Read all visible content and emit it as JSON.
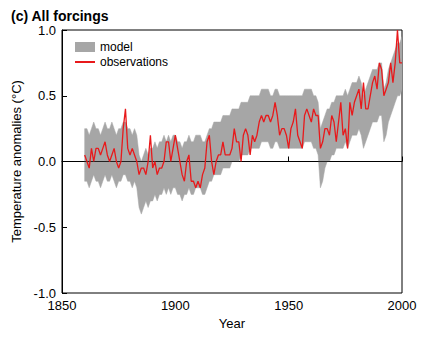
{
  "chart_data": {
    "type": "line",
    "title": "(c) All forcings",
    "x_label": "Year",
    "y_label": "Temperature anomalies (°C)",
    "xlim": [
      1850,
      2000
    ],
    "xticks": [
      1850,
      1900,
      1950,
      2000
    ],
    "ylim": [
      -1,
      1
    ],
    "yticks": [
      {
        "value": -1,
        "label": "-1.0"
      },
      {
        "value": -0.5,
        "label": "-0.5"
      },
      {
        "value": 0,
        "label": "0.0"
      },
      {
        "value": 0.5,
        "label": "0.5"
      },
      {
        "value": 1,
        "label": "1.0"
      }
    ],
    "grid": false,
    "legend": "upper left",
    "x": [
      1860,
      1861,
      1862,
      1863,
      1864,
      1865,
      1866,
      1867,
      1868,
      1869,
      1870,
      1871,
      1872,
      1873,
      1874,
      1875,
      1876,
      1877,
      1878,
      1879,
      1880,
      1881,
      1882,
      1883,
      1884,
      1885,
      1886,
      1887,
      1888,
      1889,
      1890,
      1891,
      1892,
      1893,
      1894,
      1895,
      1896,
      1897,
      1898,
      1899,
      1900,
      1901,
      1902,
      1903,
      1904,
      1905,
      1906,
      1907,
      1908,
      1909,
      1910,
      1911,
      1912,
      1913,
      1914,
      1915,
      1916,
      1917,
      1918,
      1919,
      1920,
      1921,
      1922,
      1923,
      1924,
      1925,
      1926,
      1927,
      1928,
      1929,
      1930,
      1931,
      1932,
      1933,
      1934,
      1935,
      1936,
      1937,
      1938,
      1939,
      1940,
      1941,
      1942,
      1943,
      1944,
      1945,
      1946,
      1947,
      1948,
      1949,
      1950,
      1951,
      1952,
      1953,
      1954,
      1955,
      1956,
      1957,
      1958,
      1959,
      1960,
      1961,
      1962,
      1963,
      1964,
      1965,
      1966,
      1967,
      1968,
      1969,
      1970,
      1971,
      1972,
      1973,
      1974,
      1975,
      1976,
      1977,
      1978,
      1979,
      1980,
      1981,
      1982,
      1983,
      1984,
      1985,
      1986,
      1987,
      1988,
      1989,
      1990,
      1991,
      1992,
      1993,
      1994,
      1995,
      1996,
      1997,
      1998,
      1999,
      2000
    ],
    "series": [
      {
        "name": "model",
        "type": "band",
        "color": "#a6a6a6",
        "lower": [
          -0.15,
          -0.15,
          -0.2,
          -0.15,
          -0.1,
          -0.15,
          -0.15,
          -0.2,
          -0.15,
          -0.1,
          -0.15,
          -0.15,
          -0.1,
          -0.15,
          -0.2,
          -0.15,
          -0.15,
          -0.1,
          -0.1,
          -0.15,
          -0.15,
          -0.2,
          -0.15,
          -0.2,
          -0.35,
          -0.4,
          -0.35,
          -0.3,
          -0.35,
          -0.3,
          -0.3,
          -0.25,
          -0.3,
          -0.25,
          -0.25,
          -0.2,
          -0.25,
          -0.2,
          -0.25,
          -0.2,
          -0.2,
          -0.25,
          -0.25,
          -0.3,
          -0.25,
          -0.25,
          -0.2,
          -0.25,
          -0.25,
          -0.2,
          -0.2,
          -0.2,
          -0.25,
          -0.25,
          -0.2,
          -0.15,
          -0.15,
          -0.1,
          -0.1,
          -0.1,
          -0.1,
          -0.05,
          -0.05,
          -0.05,
          -0.05,
          0.0,
          0.0,
          0.0,
          0.0,
          0.05,
          0.05,
          0.05,
          0.05,
          0.1,
          0.1,
          0.1,
          0.1,
          0.1,
          0.15,
          0.15,
          0.15,
          0.15,
          0.1,
          0.1,
          0.15,
          0.15,
          0.1,
          0.1,
          0.1,
          0.1,
          0.1,
          0.1,
          0.1,
          0.1,
          0.1,
          0.1,
          0.1,
          0.15,
          0.15,
          0.15,
          0.15,
          0.1,
          0.1,
          0.05,
          -0.2,
          -0.15,
          -0.05,
          0.0,
          0.0,
          0.05,
          0.05,
          0.1,
          0.1,
          0.1,
          0.1,
          0.15,
          0.1,
          0.15,
          0.2,
          0.2,
          0.2,
          0.25,
          0.2,
          0.1,
          0.15,
          0.2,
          0.25,
          0.3,
          0.3,
          0.3,
          0.35,
          0.35,
          0.15,
          0.2,
          0.3,
          0.35,
          0.4,
          0.45,
          0.5,
          0.5,
          0.55
        ],
        "upper": [
          0.25,
          0.25,
          0.2,
          0.25,
          0.3,
          0.25,
          0.25,
          0.2,
          0.25,
          0.3,
          0.25,
          0.25,
          0.3,
          0.25,
          0.2,
          0.25,
          0.25,
          0.3,
          0.3,
          0.25,
          0.25,
          0.2,
          0.25,
          0.2,
          0.05,
          0.0,
          0.05,
          0.1,
          0.05,
          0.1,
          0.1,
          0.15,
          0.1,
          0.15,
          0.15,
          0.2,
          0.15,
          0.2,
          0.15,
          0.2,
          0.2,
          0.15,
          0.15,
          0.1,
          0.15,
          0.15,
          0.2,
          0.15,
          0.15,
          0.2,
          0.2,
          0.2,
          0.15,
          0.15,
          0.2,
          0.25,
          0.25,
          0.3,
          0.3,
          0.3,
          0.3,
          0.35,
          0.35,
          0.35,
          0.35,
          0.4,
          0.4,
          0.4,
          0.4,
          0.45,
          0.45,
          0.45,
          0.45,
          0.5,
          0.5,
          0.5,
          0.5,
          0.5,
          0.55,
          0.55,
          0.55,
          0.55,
          0.5,
          0.5,
          0.55,
          0.55,
          0.5,
          0.5,
          0.5,
          0.5,
          0.5,
          0.5,
          0.5,
          0.5,
          0.5,
          0.5,
          0.5,
          0.55,
          0.55,
          0.55,
          0.55,
          0.5,
          0.5,
          0.45,
          0.25,
          0.3,
          0.35,
          0.4,
          0.4,
          0.45,
          0.45,
          0.5,
          0.5,
          0.5,
          0.5,
          0.55,
          0.5,
          0.55,
          0.6,
          0.6,
          0.6,
          0.65,
          0.6,
          0.5,
          0.55,
          0.6,
          0.65,
          0.7,
          0.7,
          0.7,
          0.75,
          0.75,
          0.55,
          0.6,
          0.7,
          0.75,
          0.8,
          0.85,
          0.9,
          0.9,
          0.95
        ]
      },
      {
        "name": "observations",
        "type": "line",
        "color": "#e8191b",
        "values": [
          0.05,
          0.0,
          -0.05,
          0.1,
          0.0,
          0.1,
          0.1,
          0.05,
          0.1,
          0.15,
          0.05,
          0.0,
          0.05,
          0.1,
          0.0,
          -0.05,
          0.0,
          0.25,
          0.4,
          0.1,
          0.05,
          0.1,
          0.05,
          0.0,
          -0.1,
          -0.05,
          -0.05,
          -0.1,
          0.0,
          0.2,
          -0.05,
          0.0,
          -0.1,
          -0.05,
          -0.05,
          0.0,
          0.15,
          0.15,
          0.0,
          0.1,
          0.2,
          0.1,
          0.0,
          -0.1,
          -0.15,
          0.0,
          0.05,
          -0.15,
          -0.15,
          -0.2,
          -0.15,
          -0.2,
          -0.1,
          -0.05,
          0.15,
          0.2,
          0.0,
          -0.1,
          0.0,
          0.05,
          0.05,
          0.15,
          0.05,
          0.05,
          0.05,
          0.1,
          0.25,
          0.15,
          0.15,
          0.0,
          0.2,
          0.25,
          0.2,
          0.05,
          0.2,
          0.15,
          0.2,
          0.3,
          0.35,
          0.3,
          0.35,
          0.35,
          0.3,
          0.35,
          0.45,
          0.35,
          0.2,
          0.25,
          0.25,
          0.2,
          0.1,
          0.25,
          0.3,
          0.4,
          0.2,
          0.15,
          0.1,
          0.35,
          0.4,
          0.35,
          0.3,
          0.4,
          0.35,
          0.35,
          0.1,
          0.15,
          0.25,
          0.25,
          0.2,
          0.35,
          0.3,
          0.15,
          0.3,
          0.45,
          0.2,
          0.25,
          0.1,
          0.45,
          0.35,
          0.45,
          0.5,
          0.55,
          0.4,
          0.6,
          0.4,
          0.4,
          0.5,
          0.6,
          0.65,
          0.55,
          0.75,
          0.7,
          0.5,
          0.55,
          0.6,
          0.75,
          0.6,
          0.75,
          1.0,
          0.75,
          0.75
        ]
      }
    ]
  }
}
